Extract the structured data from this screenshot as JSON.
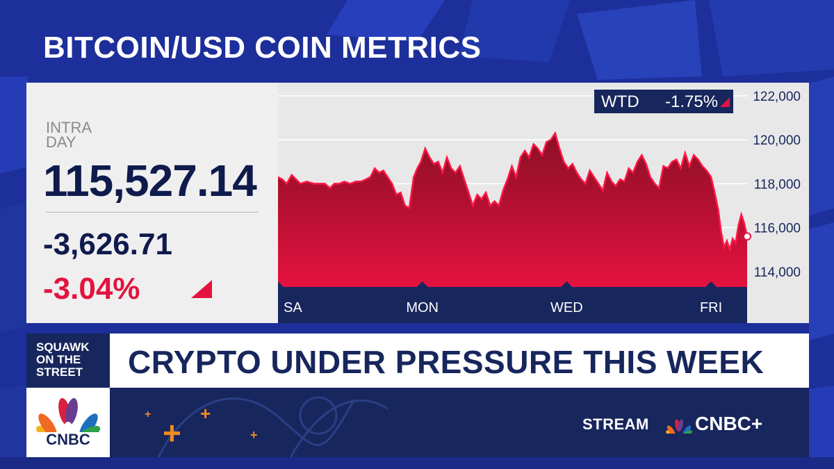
{
  "title": "BITCOIN/USD COIN METRICS",
  "quote": {
    "label": "INTRA\nDAY",
    "last": "115,527.14",
    "net_change": "-3,626.71",
    "pct_change": "-3.04%"
  },
  "wtd": {
    "label": "WTD",
    "value": "-1.75%"
  },
  "banner": {
    "show": "SQUAWK\nON THE\nSTREET",
    "headline": "CRYPTO UNDER PRESSURE THIS WEEK",
    "network_logo": "CNBC",
    "stream_label": "STREAM",
    "brand": "CNBC+"
  },
  "colors": {
    "navy": "#17265c",
    "red": "#e4123f",
    "dark_red": "#8a0f25",
    "accent_orange": "#f08a1e",
    "background_blue": "#1d2f9a"
  },
  "icons": [
    "red-down-triangle-icon",
    "peacock-logo-icon",
    "plus-icon"
  ],
  "chart_data": {
    "type": "area",
    "title": "BITCOIN/USD COIN METRICS",
    "xlabel": "",
    "ylabel": "",
    "xlim": [
      0,
      6.5
    ],
    "ylim": [
      113300,
      122600
    ],
    "x_ticks": [
      {
        "x": 0,
        "label": "SA"
      },
      {
        "x": 2,
        "label": "MON"
      },
      {
        "x": 4,
        "label": "WED"
      },
      {
        "x": 6,
        "label": "FRI"
      }
    ],
    "y_ticks": [
      {
        "y": 114000,
        "label": "114,000"
      },
      {
        "y": 116000,
        "label": "116,000"
      },
      {
        "y": 118000,
        "label": "118,000"
      },
      {
        "y": 120000,
        "label": "120,000"
      },
      {
        "y": 122000,
        "label": "122,000"
      }
    ],
    "grid": true,
    "legend": "none",
    "series": [
      {
        "values": [
          [
            0.0,
            118300
          ],
          [
            0.06,
            118200
          ],
          [
            0.12,
            118000
          ],
          [
            0.19,
            118400
          ],
          [
            0.25,
            118200
          ],
          [
            0.31,
            118000
          ],
          [
            0.4,
            118100
          ],
          [
            0.5,
            118000
          ],
          [
            0.58,
            118000
          ],
          [
            0.65,
            118000
          ],
          [
            0.72,
            117800
          ],
          [
            0.78,
            118000
          ],
          [
            0.85,
            118000
          ],
          [
            0.92,
            118100
          ],
          [
            1.0,
            118000
          ],
          [
            1.08,
            118100
          ],
          [
            1.15,
            118100
          ],
          [
            1.22,
            118200
          ],
          [
            1.28,
            118300
          ],
          [
            1.34,
            118700
          ],
          [
            1.4,
            118500
          ],
          [
            1.46,
            118600
          ],
          [
            1.52,
            118300
          ],
          [
            1.58,
            118000
          ],
          [
            1.64,
            117500
          ],
          [
            1.7,
            117600
          ],
          [
            1.76,
            117000
          ],
          [
            1.82,
            116900
          ],
          [
            1.88,
            118300
          ],
          [
            1.93,
            118700
          ],
          [
            1.98,
            119000
          ],
          [
            2.04,
            119600
          ],
          [
            2.1,
            119200
          ],
          [
            2.16,
            118900
          ],
          [
            2.22,
            119000
          ],
          [
            2.28,
            118500
          ],
          [
            2.34,
            119200
          ],
          [
            2.4,
            118700
          ],
          [
            2.46,
            118500
          ],
          [
            2.52,
            118800
          ],
          [
            2.58,
            118200
          ],
          [
            2.64,
            117600
          ],
          [
            2.7,
            117000
          ],
          [
            2.76,
            117500
          ],
          [
            2.82,
            117300
          ],
          [
            2.88,
            117600
          ],
          [
            2.94,
            117000
          ],
          [
            3.0,
            117200
          ],
          [
            3.06,
            117000
          ],
          [
            3.12,
            117700
          ],
          [
            3.18,
            118200
          ],
          [
            3.24,
            118800
          ],
          [
            3.3,
            118300
          ],
          [
            3.36,
            119200
          ],
          [
            3.42,
            119500
          ],
          [
            3.48,
            119200
          ],
          [
            3.54,
            119800
          ],
          [
            3.6,
            119600
          ],
          [
            3.66,
            119300
          ],
          [
            3.72,
            119900
          ],
          [
            3.78,
            120000
          ],
          [
            3.84,
            120300
          ],
          [
            3.9,
            119600
          ],
          [
            3.96,
            119000
          ],
          [
            4.02,
            118700
          ],
          [
            4.08,
            118900
          ],
          [
            4.14,
            118500
          ],
          [
            4.2,
            118200
          ],
          [
            4.26,
            118000
          ],
          [
            4.32,
            118600
          ],
          [
            4.38,
            118300
          ],
          [
            4.44,
            118000
          ],
          [
            4.5,
            117700
          ],
          [
            4.56,
            118500
          ],
          [
            4.62,
            118100
          ],
          [
            4.68,
            117900
          ],
          [
            4.74,
            118200
          ],
          [
            4.8,
            118100
          ],
          [
            4.86,
            118700
          ],
          [
            4.92,
            118500
          ],
          [
            4.98,
            119000
          ],
          [
            5.04,
            119300
          ],
          [
            5.1,
            118900
          ],
          [
            5.16,
            118300
          ],
          [
            5.22,
            118000
          ],
          [
            5.28,
            117800
          ],
          [
            5.34,
            118800
          ],
          [
            5.4,
            118700
          ],
          [
            5.46,
            119000
          ],
          [
            5.52,
            119100
          ],
          [
            5.58,
            118700
          ],
          [
            5.64,
            119400
          ],
          [
            5.7,
            118800
          ],
          [
            5.76,
            119300
          ],
          [
            5.82,
            119100
          ],
          [
            5.88,
            118800
          ],
          [
            5.94,
            118600
          ],
          [
            6.0,
            118300
          ],
          [
            6.05,
            117600
          ],
          [
            6.1,
            116800
          ],
          [
            6.14,
            115800
          ],
          [
            6.18,
            115100
          ],
          [
            6.22,
            115400
          ],
          [
            6.26,
            115000
          ],
          [
            6.3,
            115500
          ],
          [
            6.34,
            115300
          ],
          [
            6.38,
            116100
          ],
          [
            6.42,
            116600
          ],
          [
            6.46,
            116200
          ],
          [
            6.5,
            115600
          ]
        ]
      }
    ]
  }
}
